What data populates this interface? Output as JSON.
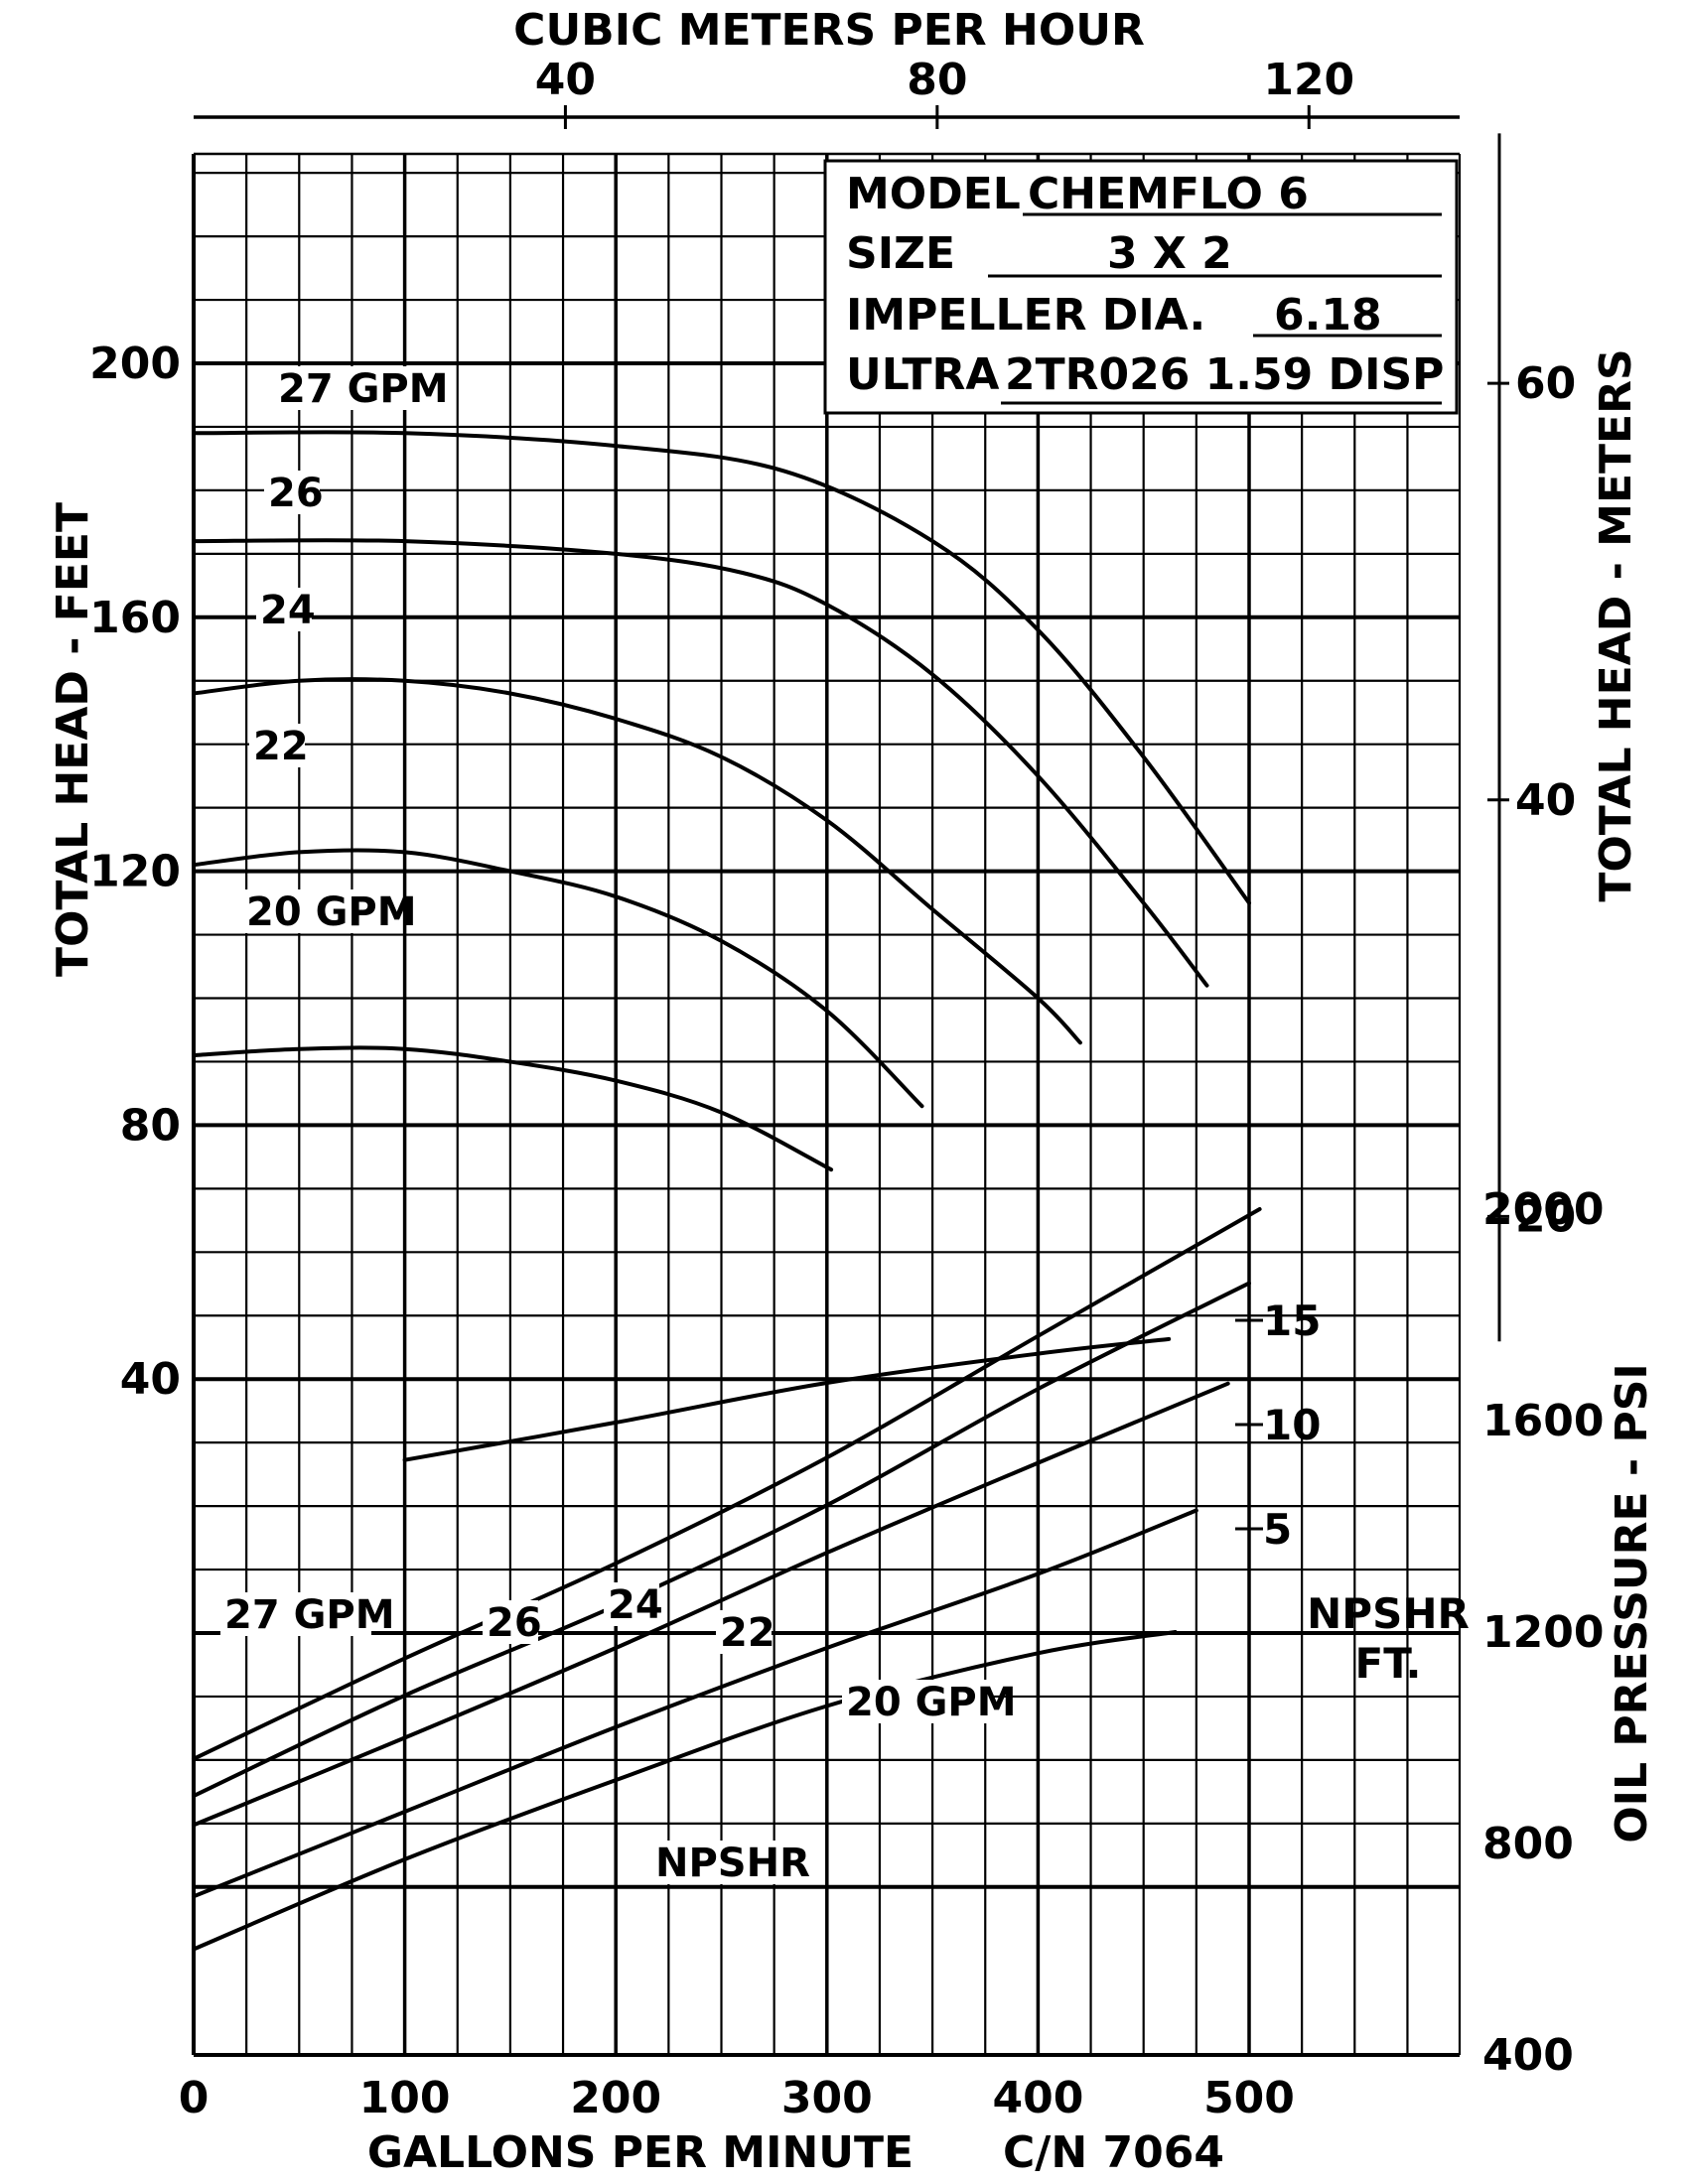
{
  "chart_data": {
    "type": "line",
    "top_axis": {
      "label": "CUBIC METERS PER HOUR",
      "ticks": [
        "40",
        "80",
        "120"
      ],
      "tick_values": [
        40,
        80,
        120
      ]
    },
    "bottom_axis": {
      "label": "GALLONS PER MINUTE",
      "ticks": [
        "0",
        "100",
        "200",
        "300",
        "400",
        "500"
      ],
      "tick_values": [
        0,
        100,
        200,
        300,
        400,
        500
      ],
      "xlim": [
        0,
        600
      ]
    },
    "left_axis": {
      "label": "TOTAL HEAD - FEET",
      "ticks": [
        "40",
        "80",
        "120",
        "160",
        "200"
      ],
      "tick_values": [
        40,
        80,
        120,
        160,
        200
      ],
      "ylim": [
        -40,
        240
      ]
    },
    "right_axis_meters": {
      "label": "TOTAL HEAD - METERS",
      "ticks": [
        "20",
        "40",
        "60"
      ],
      "tick_values": [
        20,
        40,
        60
      ]
    },
    "right_axis_psi": {
      "label": "OIL PRESSURE - PSI",
      "ticks": [
        "400",
        "800",
        "1200",
        "1600",
        "2000"
      ],
      "tick_values": [
        400,
        800,
        1200,
        1600,
        2000
      ]
    },
    "npshr_axis": {
      "label_line1": "NPSHR",
      "label_line2": "FT.",
      "ticks": [
        "5",
        "10",
        "15"
      ],
      "tick_values": [
        5,
        10,
        15
      ]
    },
    "info_box": {
      "model_label": "MODEL",
      "model_value": "CHEMFLO 6",
      "size_label": "SIZE",
      "size_value": "3 X 2",
      "impeller_label": "IMPELLER DIA.",
      "impeller_value": "6.18",
      "ultra_label": "ULTRA",
      "ultra_value": "2TR026 1.59 DISP"
    },
    "footer_code": "C/N 7064",
    "head_series": [
      {
        "name": "27 GPM",
        "units": "TOTAL HEAD - FEET",
        "points": [
          [
            0,
            189
          ],
          [
            100,
            189
          ],
          [
            200,
            187
          ],
          [
            280,
            183
          ],
          [
            350,
            172
          ],
          [
            400,
            158
          ],
          [
            450,
            138
          ],
          [
            500,
            115
          ]
        ]
      },
      {
        "name": "26",
        "units": "TOTAL HEAD - FEET",
        "points": [
          [
            0,
            172
          ],
          [
            100,
            172
          ],
          [
            200,
            170
          ],
          [
            260,
            167
          ],
          [
            300,
            162
          ],
          [
            350,
            151
          ],
          [
            400,
            135
          ],
          [
            450,
            115
          ],
          [
            480,
            102
          ]
        ]
      },
      {
        "name": "24",
        "units": "TOTAL HEAD - FEET",
        "points": [
          [
            0,
            148
          ],
          [
            50,
            150
          ],
          [
            100,
            150
          ],
          [
            150,
            148
          ],
          [
            200,
            144
          ],
          [
            250,
            138
          ],
          [
            300,
            128
          ],
          [
            350,
            114
          ],
          [
            400,
            100
          ],
          [
            420,
            93
          ]
        ]
      },
      {
        "name": "22",
        "units": "TOTAL HEAD - FEET",
        "points": [
          [
            0,
            121
          ],
          [
            50,
            123
          ],
          [
            100,
            123
          ],
          [
            150,
            120
          ],
          [
            200,
            116
          ],
          [
            250,
            109
          ],
          [
            300,
            98
          ],
          [
            345,
            83
          ]
        ]
      },
      {
        "name": "20 GPM",
        "units": "TOTAL HEAD - FEET",
        "points": [
          [
            0,
            91
          ],
          [
            50,
            92
          ],
          [
            100,
            92
          ],
          [
            150,
            90
          ],
          [
            200,
            87
          ],
          [
            250,
            82
          ],
          [
            302,
            73
          ]
        ]
      }
    ],
    "pressure_series": [
      {
        "name": "27 GPM",
        "units": "OIL PRESSURE - PSI",
        "points": [
          [
            0,
            960
          ],
          [
            100,
            1150
          ],
          [
            200,
            1330
          ],
          [
            300,
            1530
          ],
          [
            400,
            1760
          ],
          [
            505,
            2000
          ]
        ]
      },
      {
        "name": "26",
        "units": "OIL PRESSURE - PSI",
        "points": [
          [
            0,
            890
          ],
          [
            100,
            1080
          ],
          [
            200,
            1250
          ],
          [
            300,
            1440
          ],
          [
            400,
            1660
          ],
          [
            500,
            1860
          ]
        ]
      },
      {
        "name": "24",
        "units": "OIL PRESSURE - PSI",
        "points": [
          [
            0,
            835
          ],
          [
            100,
            1000
          ],
          [
            200,
            1170
          ],
          [
            300,
            1350
          ],
          [
            400,
            1520
          ],
          [
            490,
            1670
          ]
        ]
      },
      {
        "name": "22",
        "units": "OIL PRESSURE - PSI",
        "points": [
          [
            0,
            700
          ],
          [
            100,
            860
          ],
          [
            200,
            1020
          ],
          [
            300,
            1170
          ],
          [
            400,
            1310
          ],
          [
            475,
            1430
          ]
        ]
      },
      {
        "name": "20 GPM",
        "units": "OIL PRESSURE - PSI",
        "points": [
          [
            0,
            600
          ],
          [
            100,
            770
          ],
          [
            200,
            920
          ],
          [
            300,
            1060
          ],
          [
            400,
            1160
          ],
          [
            465,
            1200
          ]
        ]
      }
    ],
    "npshr_series": {
      "name": "NPSHR",
      "units": "NPSHR FT.",
      "points": [
        [
          100,
          8.3
        ],
        [
          200,
          10.1
        ],
        [
          300,
          12
        ],
        [
          400,
          13.4
        ],
        [
          462,
          14.1
        ]
      ]
    }
  }
}
